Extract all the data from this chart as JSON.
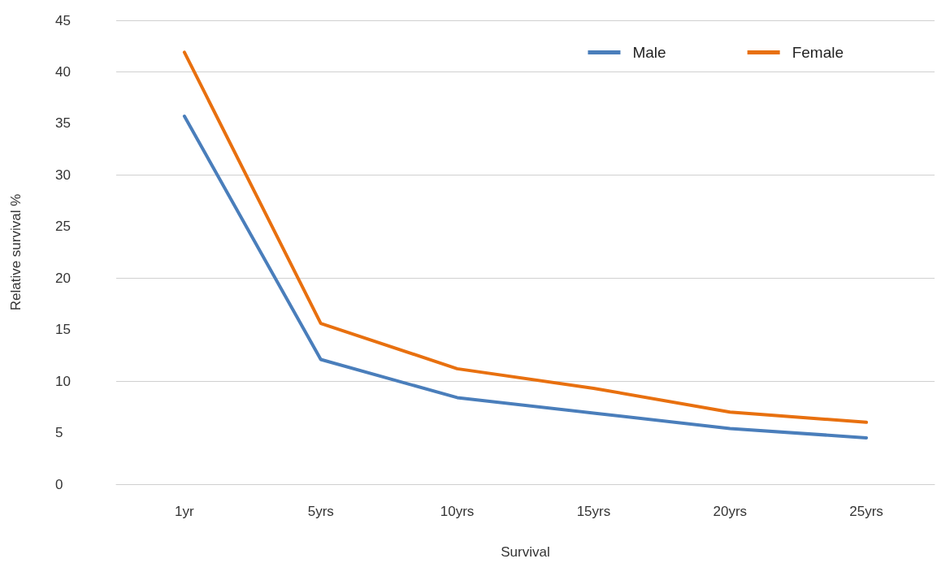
{
  "chart_data": {
    "type": "line",
    "xlabel": "Survival",
    "ylabel": "Relative survival %",
    "categories": [
      "1yr",
      "5yrs",
      "10yrs",
      "15yrs",
      "20yrs",
      "25yrs"
    ],
    "series": [
      {
        "name": "Male",
        "color": "#4a7ebb",
        "values": [
          35.7,
          12.1,
          8.4,
          6.9,
          5.4,
          4.5
        ]
      },
      {
        "name": "Female",
        "color": "#e8700f",
        "values": [
          41.9,
          15.6,
          11.2,
          9.3,
          7.0,
          6.0
        ]
      }
    ],
    "ylim": [
      0,
      45
    ],
    "yticks": [
      0,
      5,
      10,
      15,
      20,
      25,
      30,
      35,
      40,
      45
    ],
    "grid": "y",
    "legend": "top right",
    "marker": "none",
    "line_style": "solid"
  }
}
